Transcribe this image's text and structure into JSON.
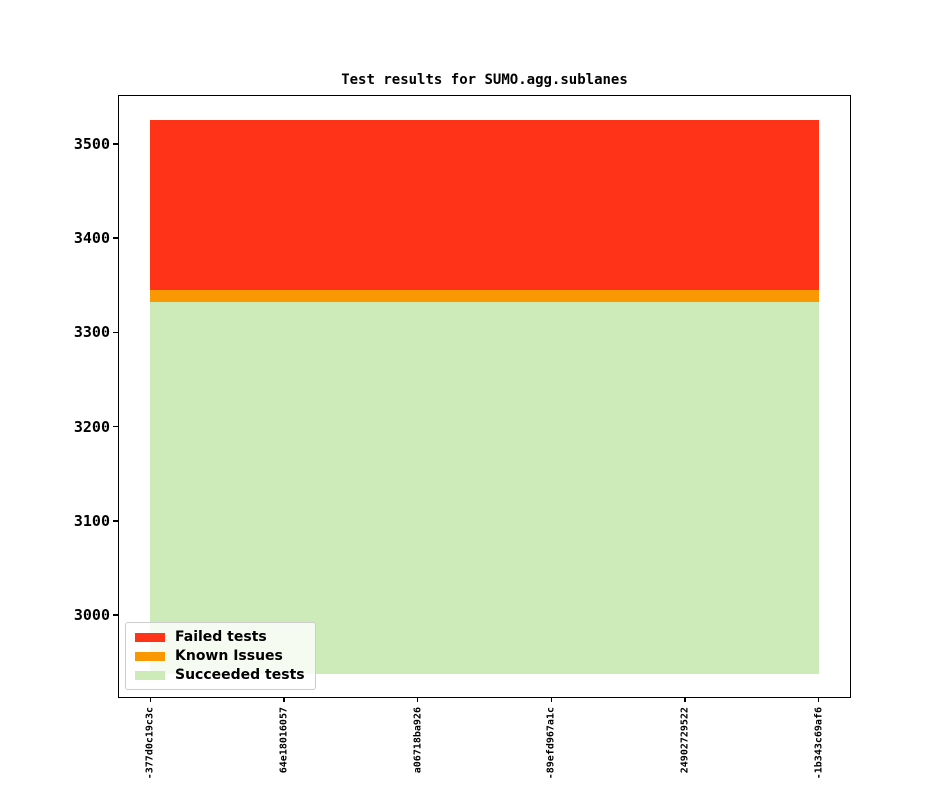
{
  "figure": {
    "background": "#ffffff"
  },
  "chart_data": {
    "type": "area",
    "stacked": true,
    "title": "Test results for SUMO.agg.sublanes",
    "categories": [
      "-377d0c19c3c",
      "64e18016057",
      "a06718ba926",
      "-89efd967a1c",
      "24902729522",
      "-1b343c69af6"
    ],
    "series": [
      {
        "name": "Failed tests",
        "color": "#ff3318",
        "stack_top": 3525,
        "stack_bottom": 3345,
        "values": [
          180,
          180,
          180,
          180,
          180,
          180
        ]
      },
      {
        "name": "Known Issues",
        "color": "#fa9803",
        "stack_top": 3345,
        "stack_bottom": 3332,
        "values": [
          13,
          13,
          13,
          13,
          13,
          13
        ]
      },
      {
        "name": "Succeeded tests",
        "color": "#cdebb9",
        "stack_top": 3332,
        "stack_bottom": 2937,
        "values": [
          3332,
          3332,
          3332,
          3332,
          3332,
          3332
        ]
      }
    ],
    "axes": {
      "ylim": [
        2912,
        3552
      ],
      "yticks": [
        3000,
        3100,
        3200,
        3300,
        3400,
        3500
      ],
      "x_tick_rotation": 90,
      "grid": false,
      "tick_color": "#000000"
    },
    "legend": {
      "position": "lower left"
    }
  }
}
